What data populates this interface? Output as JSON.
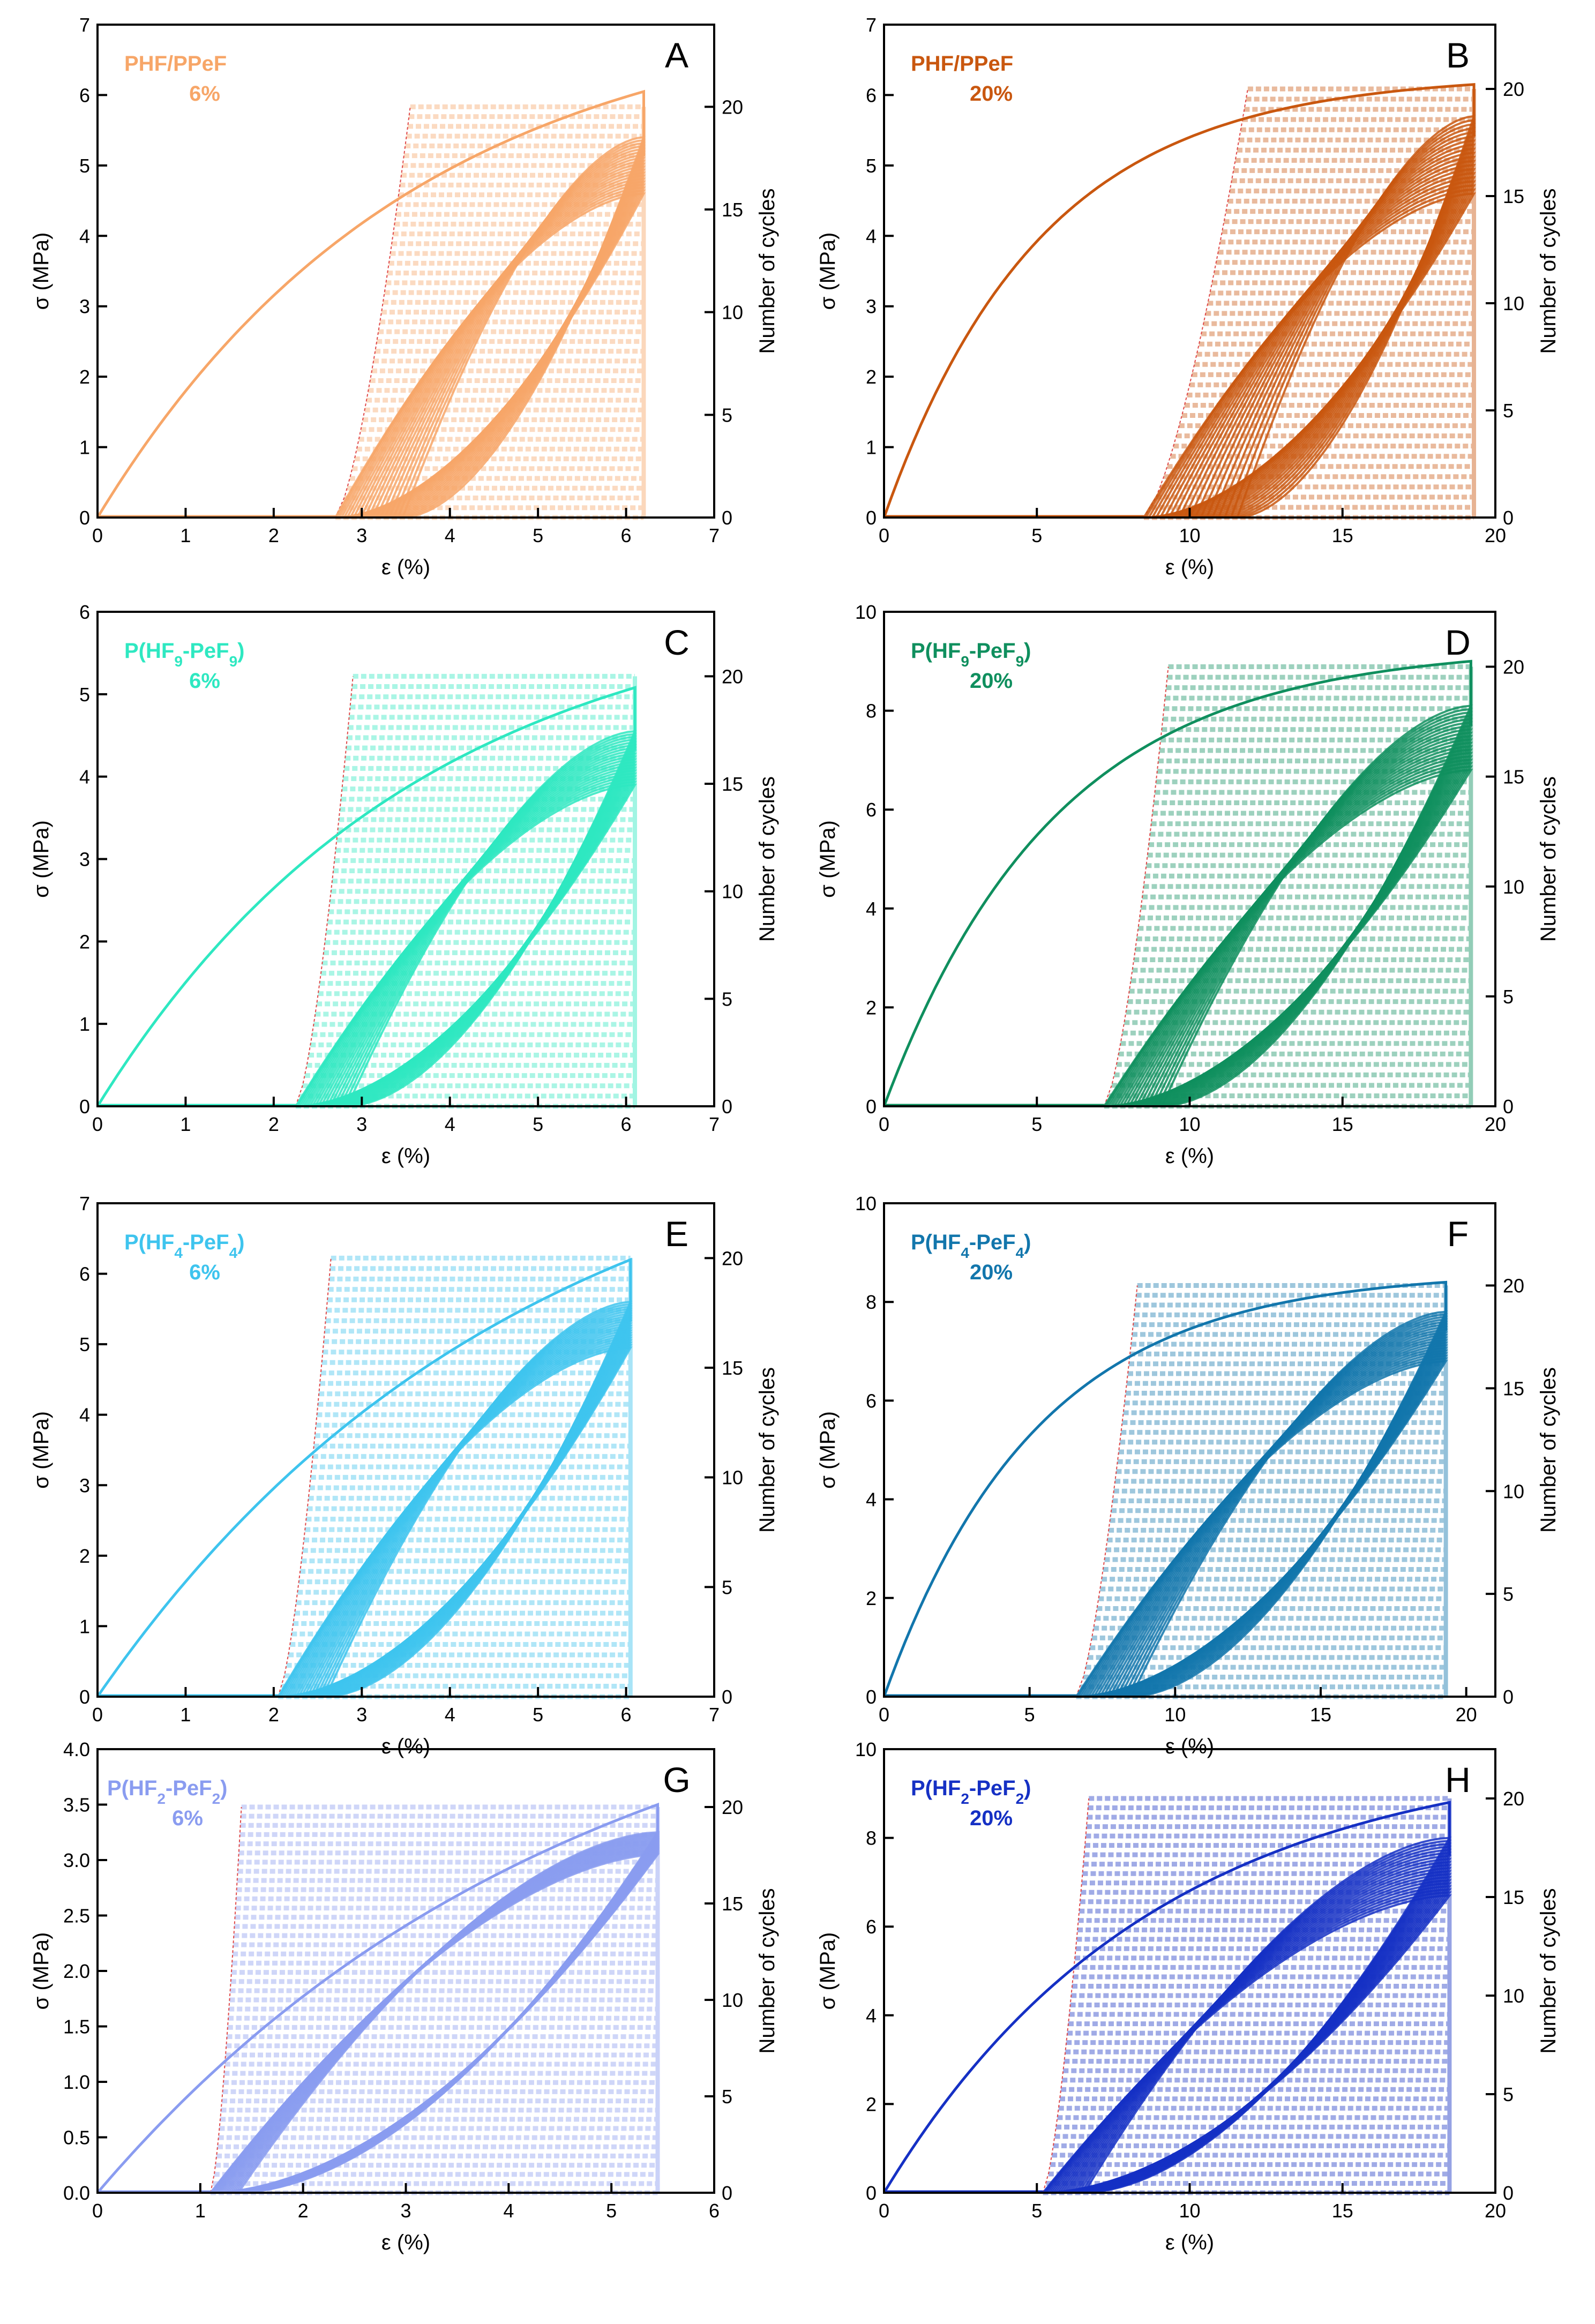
{
  "chart_data": [
    {
      "type": "line",
      "panel": "A",
      "sample": "PHF/PPeF",
      "strain": "6%",
      "color": "#f7a668",
      "xlabel": "ε (%)",
      "ylabel": "σ (MPa)",
      "y2label": "Number of cycles",
      "xlim": [
        0,
        7
      ],
      "xticks": [
        "0",
        "1",
        "2",
        "3",
        "4",
        "5",
        "6",
        "7"
      ],
      "ylim": [
        0,
        7
      ],
      "yticks": [
        "0",
        "1",
        "2",
        "3",
        "4",
        "5",
        "6",
        "7"
      ],
      "y2lim": [
        0,
        24
      ],
      "y2ticks": [
        "0",
        "5",
        "10",
        "15",
        "20"
      ],
      "loading": {
        "strain_max": 6.2,
        "stress_max": 6.05,
        "initial_slope": 1.7
      },
      "unloading_residual_strain": [
        3.55,
        2.7
      ],
      "cycle_peak_stress": [
        5.4,
        4.6
      ],
      "cycles": 20
    },
    {
      "type": "line",
      "panel": "B",
      "sample": "PHF/PPeF",
      "strain": "20%",
      "color": "#c9570f",
      "xlabel": "ε (%)",
      "ylabel": "σ (MPa)",
      "y2label": "Number of cycles",
      "xlim": [
        0,
        20
      ],
      "xticks": [
        "0",
        "5",
        "10",
        "15",
        "20"
      ],
      "ylim": [
        0,
        7
      ],
      "yticks": [
        "0",
        "1",
        "2",
        "3",
        "4",
        "5",
        "6",
        "7"
      ],
      "y2lim": [
        0,
        23
      ],
      "y2ticks": [
        "0",
        "5",
        "10",
        "15",
        "20"
      ],
      "loading": {
        "strain_max": 19.3,
        "stress_max": 6.15,
        "initial_slope": 1.2
      },
      "unloading_residual_strain": [
        11.9,
        8.5
      ],
      "cycle_peak_stress": [
        5.7,
        4.6
      ],
      "cycles": 20
    },
    {
      "type": "line",
      "panel": "C",
      "sample": "P(HF9-PeF9)",
      "strain": "6%",
      "color": "#2ee8c1",
      "xlabel": "ε (%)",
      "ylabel": "σ (MPa)",
      "y2label": "Number of cycles",
      "xlim": [
        0,
        7
      ],
      "xticks": [
        "0",
        "1",
        "2",
        "3",
        "4",
        "5",
        "6",
        "7"
      ],
      "ylim": [
        0,
        6
      ],
      "yticks": [
        "0",
        "1",
        "2",
        "3",
        "4",
        "5",
        "6"
      ],
      "y2lim": [
        0,
        23
      ],
      "y2ticks": [
        "0",
        "5",
        "10",
        "15",
        "20"
      ],
      "loading": {
        "strain_max": 6.1,
        "stress_max": 5.08,
        "initial_slope": 1.4
      },
      "unloading_residual_strain": [
        2.9,
        2.25
      ],
      "cycle_peak_stress": [
        4.55,
        3.9
      ],
      "cycles": 20
    },
    {
      "type": "line",
      "panel": "D",
      "sample": "P(HF9-PeF9)",
      "strain": "20%",
      "color": "#0f8f5e",
      "xlabel": "ε (%)",
      "ylabel": "σ (MPa)",
      "y2label": "Number of cycles",
      "xlim": [
        0,
        20
      ],
      "xticks": [
        "0",
        "5",
        "10",
        "15",
        "20"
      ],
      "ylim": [
        0,
        10
      ],
      "yticks": [
        "0",
        "2",
        "4",
        "6",
        "8",
        "10"
      ],
      "y2lim": [
        0,
        22.5
      ],
      "y2ticks": [
        "0",
        "5",
        "10",
        "15",
        "20"
      ],
      "loading": {
        "strain_max": 19.2,
        "stress_max": 9.0,
        "initial_slope": 1.6
      },
      "unloading_residual_strain": [
        9.3,
        7.2
      ],
      "cycle_peak_stress": [
        8.1,
        6.8
      ],
      "cycles": 20
    },
    {
      "type": "line",
      "panel": "E",
      "sample": "P(HF4-PeF4)",
      "strain": "6%",
      "color": "#3ec4ee",
      "xlabel": "ε (%)",
      "ylabel": "σ (MPa)",
      "y2label": "Number of cycles",
      "xlim": [
        0,
        7
      ],
      "xticks": [
        "0",
        "1",
        "2",
        "3",
        "4",
        "5",
        "6",
        "7"
      ],
      "ylim": [
        0,
        7
      ],
      "yticks": [
        "0",
        "1",
        "2",
        "3",
        "4",
        "5",
        "6",
        "7"
      ],
      "y2lim": [
        0,
        22.5
      ],
      "y2ticks": [
        "0",
        "5",
        "10",
        "15",
        "20"
      ],
      "loading": {
        "strain_max": 6.05,
        "stress_max": 6.2,
        "initial_slope": 1.3
      },
      "unloading_residual_strain": [
        2.65,
        2.05
      ],
      "cycle_peak_stress": [
        5.6,
        4.95
      ],
      "cycles": 20
    },
    {
      "type": "line",
      "panel": "F",
      "sample": "P(HF4-PeF4)",
      "strain": "20%",
      "color": "#1276ac",
      "xlabel": "ε (%)",
      "ylabel": "σ (MPa)",
      "y2label": "Number of cycles",
      "xlim": [
        0,
        21
      ],
      "xticks": [
        "0",
        "5",
        "10",
        "15",
        "20"
      ],
      "ylim": [
        0,
        10
      ],
      "yticks": [
        "0",
        "2",
        "4",
        "6",
        "8",
        "10"
      ],
      "y2lim": [
        0,
        24
      ],
      "y2ticks": [
        "0",
        "5",
        "10",
        "15",
        "20"
      ],
      "loading": {
        "strain_max": 19.3,
        "stress_max": 8.4,
        "initial_slope": 1.6
      },
      "unloading_residual_strain": [
        8.7,
        6.6
      ],
      "cycle_peak_stress": [
        7.8,
        6.8
      ],
      "cycles": 20
    },
    {
      "type": "line",
      "panel": "G",
      "sample": "P(HF2-PeF2)",
      "strain": "6%",
      "color": "#8a9cf0",
      "xlabel": "ε (%)",
      "ylabel": "σ (MPa)",
      "y2label": "Number of cycles",
      "xlim": [
        0,
        6
      ],
      "xticks": [
        "0",
        "1",
        "2",
        "3",
        "4",
        "5",
        "6"
      ],
      "ylim": [
        0,
        4
      ],
      "yticks": [
        "0.0",
        "0.5",
        "1.0",
        "1.5",
        "2.0",
        "2.5",
        "3.0",
        "3.5",
        "4.0"
      ],
      "y2lim": [
        0,
        23
      ],
      "y2ticks": [
        "0",
        "5",
        "10",
        "15",
        "20"
      ],
      "loading": {
        "strain_max": 5.45,
        "stress_max": 3.5,
        "initial_slope": 0.75
      },
      "unloading_residual_strain": [
        1.4,
        1.1
      ],
      "cycle_peak_stress": [
        3.25,
        3.05
      ],
      "cycles": 20
    },
    {
      "type": "line",
      "panel": "H",
      "sample": "P(HF2-PeF2)",
      "strain": "20%",
      "color": "#1530c4",
      "xlabel": "ε (%)",
      "ylabel": "σ (MPa)",
      "y2label": "Number of cycles",
      "xlim": [
        0,
        20
      ],
      "xticks": [
        "0",
        "5",
        "10",
        "15",
        "20"
      ],
      "ylim": [
        0,
        10
      ],
      "yticks": [
        "0",
        "2",
        "4",
        "6",
        "8",
        "10"
      ],
      "y2lim": [
        0,
        22.5
      ],
      "y2ticks": [
        "0",
        "5",
        "10",
        "15",
        "20"
      ],
      "loading": {
        "strain_max": 18.5,
        "stress_max": 8.8,
        "initial_slope": 1.0
      },
      "unloading_residual_strain": [
        6.7,
        5.2
      ],
      "cycle_peak_stress": [
        8.0,
        6.7
      ],
      "cycles": 20
    }
  ]
}
